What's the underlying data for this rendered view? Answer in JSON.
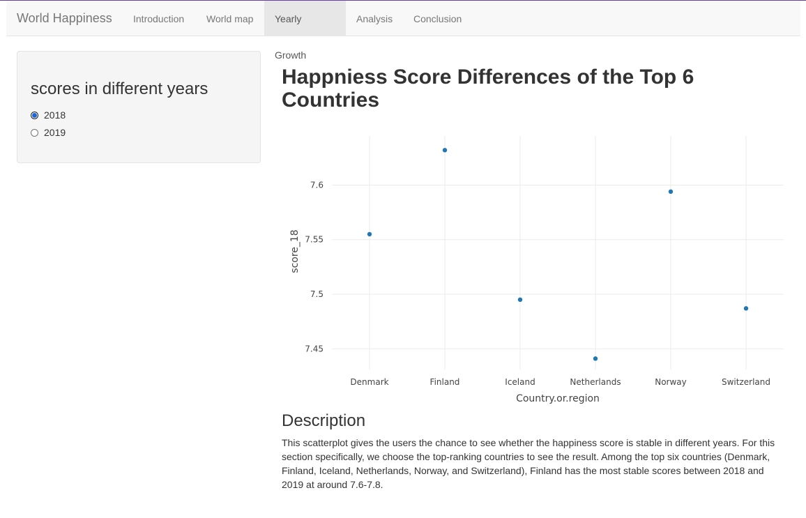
{
  "app": {
    "brand": "World Happiness",
    "nav": [
      {
        "label": "Introduction",
        "active": false
      },
      {
        "label": "World map",
        "active": false
      },
      {
        "label": "Yearly Growth",
        "active": true
      },
      {
        "label": "Analysis",
        "active": false
      },
      {
        "label": "Conclusion",
        "active": false
      }
    ]
  },
  "sidebar": {
    "title": "scores in different years",
    "options": [
      {
        "label": "2018",
        "checked": true
      },
      {
        "label": "2019",
        "checked": false
      }
    ]
  },
  "main": {
    "title": "Happniess Score Differences of the Top 6 Countries",
    "description_heading": "Description",
    "description": "This scatterplot gives the users the chance to see whether the happiness score is stable in different years. For this section specifically, we choose the top-ranking countries to see the result. Among the top six countries (Denmark, Finland, Iceland, Netherlands, Norway, and Switzerland), Finland has the most stable scores between 2018 and 2019 at around 7.6-7.8."
  },
  "chart_data": {
    "type": "scatter",
    "categories": [
      "Denmark",
      "Finland",
      "Iceland",
      "Netherlands",
      "Norway",
      "Switzerland"
    ],
    "values": [
      7.555,
      7.632,
      7.495,
      7.441,
      7.594,
      7.487
    ],
    "xlabel": "Country.or.region",
    "ylabel": "score_18",
    "yticks": [
      7.45,
      7.5,
      7.55,
      7.6
    ],
    "ytick_labels": [
      "7.45",
      "7.5",
      "7.55",
      "7.6"
    ],
    "ylim": [
      7.431,
      7.645
    ],
    "grid": true,
    "marker_color": "#1f77b4"
  }
}
